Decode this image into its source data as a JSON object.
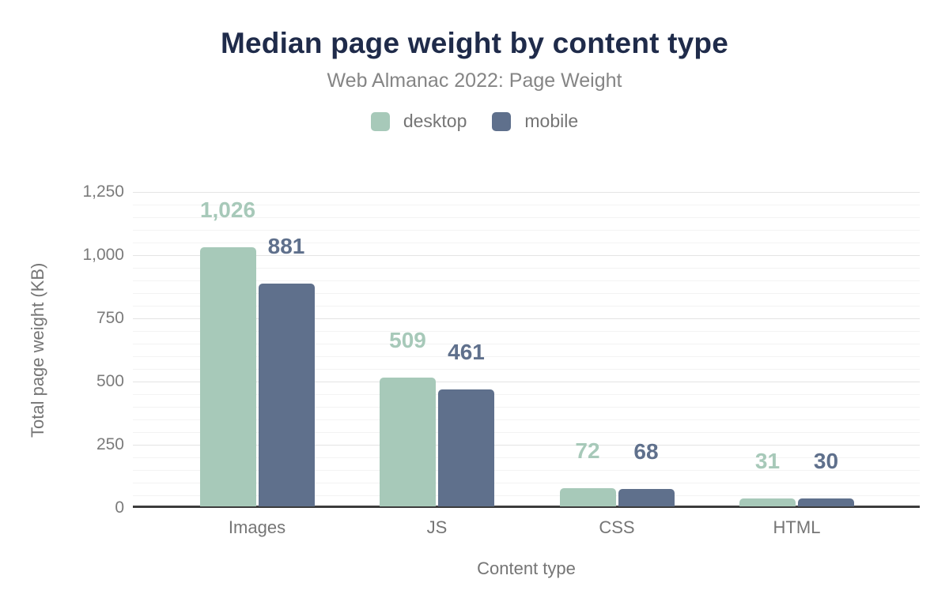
{
  "header": {
    "title": "Median page weight by content type",
    "subtitle": "Web Almanac 2022: Page Weight"
  },
  "colors": {
    "desktop": "#a7c9b9",
    "mobile": "#5f708c",
    "title": "#1f2b4a",
    "axis_line": "#3c3c3c",
    "gray_text": "#757575",
    "major_grid": "#e4e4e4",
    "minor_grid": "#f3f3f3"
  },
  "chart_data": {
    "type": "bar",
    "title": "Median page weight by content type",
    "subtitle": "Web Almanac 2022: Page Weight",
    "categories": [
      "Images",
      "JS",
      "CSS",
      "HTML"
    ],
    "series": [
      {
        "name": "desktop",
        "color": "#a7c9b9",
        "values": [
          1026,
          509,
          72,
          31
        ],
        "labels": [
          "1,026",
          "509",
          "72",
          "31"
        ]
      },
      {
        "name": "mobile",
        "color": "#5f708c",
        "values": [
          881,
          461,
          68,
          30
        ],
        "labels": [
          "881",
          "461",
          "68",
          "30"
        ]
      }
    ],
    "xlabel": "Content type",
    "ylabel": "Total page weight (KB)",
    "ylim": [
      0,
      1250
    ],
    "yticks": [
      0,
      250,
      500,
      750,
      1000,
      1250
    ],
    "ytick_labels": [
      "0",
      "250",
      "500",
      "750",
      "1,000",
      "1,250"
    ],
    "minor_grid_step": 50,
    "grid": true,
    "legend_position": "top",
    "value_labels_shown": true
  }
}
